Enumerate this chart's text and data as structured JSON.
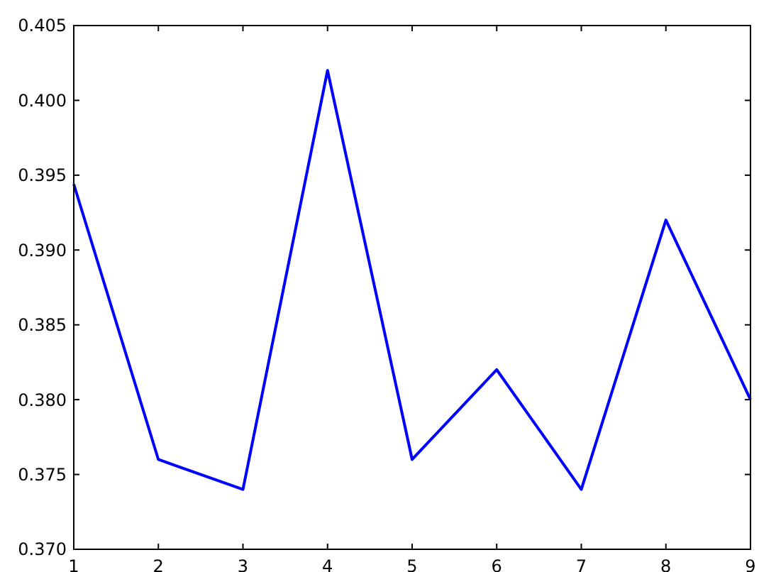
{
  "chart_data": {
    "type": "line",
    "x": [
      1,
      2,
      3,
      4,
      5,
      6,
      7,
      8,
      9
    ],
    "series": [
      {
        "color": "#0000ff",
        "values": [
          0.3944,
          0.376,
          0.374,
          0.402,
          0.376,
          0.382,
          0.374,
          0.392,
          0.38
        ]
      }
    ],
    "xlim": [
      1,
      9
    ],
    "xticks": [
      1,
      2,
      3,
      4,
      5,
      6,
      7,
      8,
      9
    ],
    "ylim": [
      0.37,
      0.405
    ],
    "yticks": [
      {
        "value": 0.37,
        "label": "0.370"
      },
      {
        "value": 0.375,
        "label": "0.375"
      },
      {
        "value": 0.38,
        "label": "0.380"
      },
      {
        "value": 0.385,
        "label": "0.385"
      },
      {
        "value": 0.39,
        "label": "0.390"
      },
      {
        "value": 0.395,
        "label": "0.395"
      },
      {
        "value": 0.4,
        "label": "0.400"
      },
      {
        "value": 0.405,
        "label": "0.405"
      }
    ],
    "grid": false,
    "marker": "none",
    "line_style": "solid"
  }
}
